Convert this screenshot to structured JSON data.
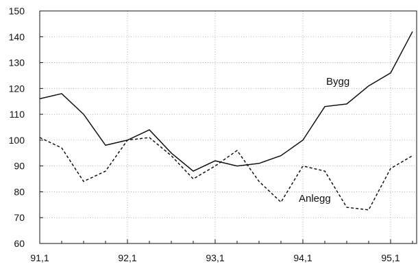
{
  "chart_data": {
    "type": "line",
    "title": "",
    "xlabel": "",
    "ylabel": "",
    "x_tick_labels": [
      "91,1",
      "92,1",
      "93,1",
      "94,1",
      "95,1"
    ],
    "y_tick_labels": [
      "60",
      "70",
      "80",
      "90",
      "100",
      "110",
      "120",
      "130",
      "140",
      "150"
    ],
    "ylim": [
      60,
      150
    ],
    "grid": true,
    "series": [
      {
        "name": "Bygg",
        "line_style": "solid",
        "color": "#111111",
        "x": [
          0,
          0.25,
          0.5,
          0.75,
          1,
          1.25,
          1.5,
          1.75,
          2,
          2.25,
          2.5,
          2.75,
          3,
          3.25,
          3.5,
          3.75,
          4,
          4.25
        ],
        "values": [
          116,
          118,
          110,
          98,
          100,
          104,
          95,
          88,
          92,
          90,
          91,
          94,
          100,
          113,
          114,
          121,
          126,
          142
        ]
      },
      {
        "name": "Anlegg",
        "line_style": "dashed",
        "color": "#111111",
        "x": [
          0,
          0.25,
          0.5,
          0.75,
          1,
          1.25,
          1.5,
          1.75,
          2,
          2.25,
          2.5,
          2.75,
          3,
          3.25,
          3.5,
          3.75,
          4,
          4.25
        ],
        "values": [
          101,
          97,
          84,
          88,
          100,
          101,
          94,
          85,
          90,
          96,
          84,
          76,
          90,
          88,
          74,
          73,
          89,
          94
        ]
      }
    ]
  }
}
